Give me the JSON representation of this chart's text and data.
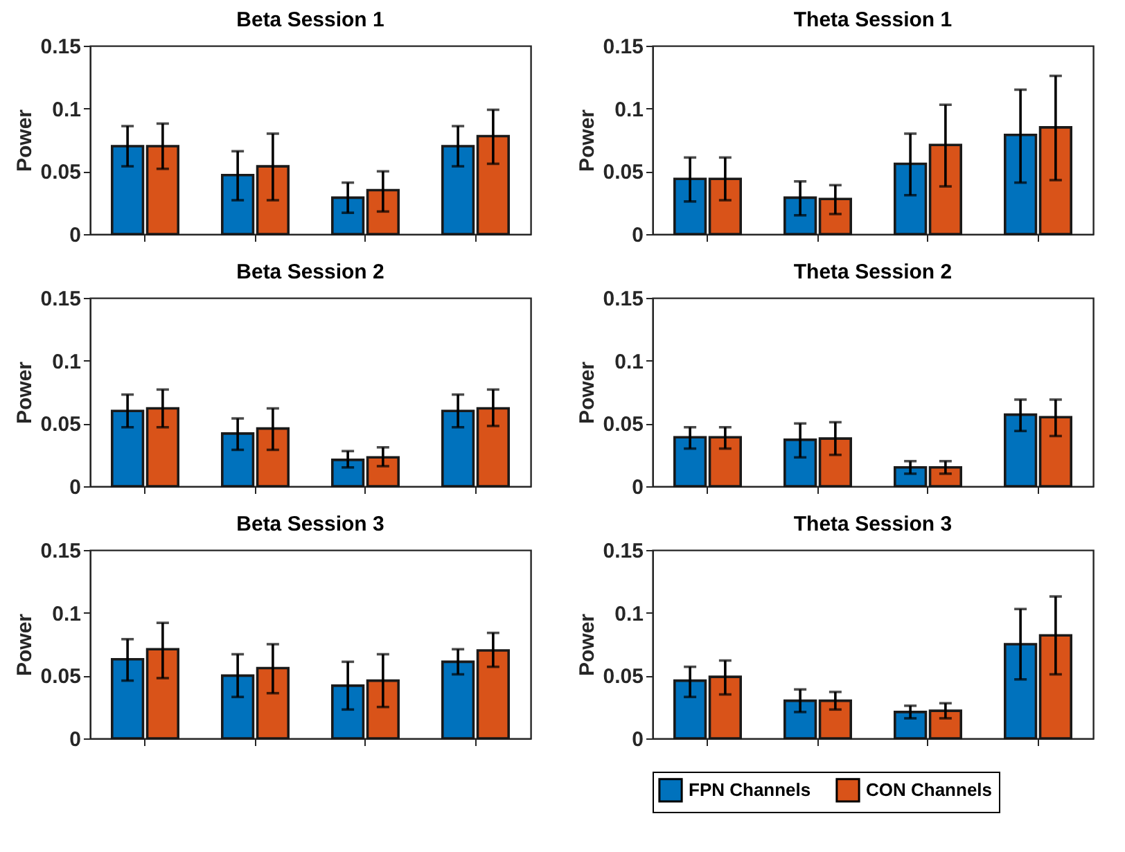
{
  "chart_data": [
    {
      "type": "bar",
      "title": "Beta Session 1",
      "ylabel": "Power",
      "categories": [
        null,
        null,
        null,
        null
      ],
      "ylim": [
        0,
        0.15
      ],
      "yticks": [
        0,
        0.05,
        0.1,
        0.15
      ],
      "tick_labels": "y",
      "grid": false,
      "legend": false,
      "series": [
        {
          "color": "#0072bd",
          "values": [
            0.07,
            0.047,
            0.029,
            0.07
          ],
          "errors": [
            [
              0.054,
              0.086
            ],
            [
              0.027,
              0.066
            ],
            [
              0.017,
              0.041
            ],
            [
              0.054,
              0.086
            ]
          ]
        },
        {
          "color": "#d95319",
          "values": [
            0.07,
            0.054,
            0.035,
            0.078
          ],
          "errors": [
            [
              0.052,
              0.088
            ],
            [
              0.027,
              0.08
            ],
            [
              0.018,
              0.05
            ],
            [
              0.056,
              0.099
            ]
          ]
        }
      ]
    },
    {
      "type": "bar",
      "title": "Theta Session 1",
      "ylabel": "Power",
      "categories": [
        null,
        null,
        null,
        null
      ],
      "ylim": [
        0,
        0.15
      ],
      "yticks": [
        0,
        0.05,
        0.1,
        0.15
      ],
      "tick_labels": "y",
      "grid": false,
      "legend": false,
      "series": [
        {
          "color": "#0072bd",
          "values": [
            0.044,
            0.029,
            0.056,
            0.079
          ],
          "errors": [
            [
              0.026,
              0.061
            ],
            [
              0.015,
              0.042
            ],
            [
              0.031,
              0.08
            ],
            [
              0.041,
              0.115
            ]
          ]
        },
        {
          "color": "#d95319",
          "values": [
            0.044,
            0.028,
            0.071,
            0.085
          ],
          "errors": [
            [
              0.027,
              0.061
            ],
            [
              0.016,
              0.039
            ],
            [
              0.038,
              0.103
            ],
            [
              0.043,
              0.126
            ]
          ]
        }
      ]
    },
    {
      "type": "bar",
      "title": "Beta Session 2",
      "ylabel": "Power",
      "categories": [
        null,
        null,
        null,
        null
      ],
      "ylim": [
        0,
        0.15
      ],
      "yticks": [
        0,
        0.05,
        0.1,
        0.15
      ],
      "tick_labels": "y",
      "grid": false,
      "legend": false,
      "series": [
        {
          "color": "#0072bd",
          "values": [
            0.06,
            0.042,
            0.021,
            0.06
          ],
          "errors": [
            [
              0.047,
              0.073
            ],
            [
              0.029,
              0.054
            ],
            [
              0.015,
              0.028
            ],
            [
              0.047,
              0.073
            ]
          ]
        },
        {
          "color": "#d95319",
          "values": [
            0.062,
            0.046,
            0.023,
            0.062
          ],
          "errors": [
            [
              0.047,
              0.077
            ],
            [
              0.029,
              0.062
            ],
            [
              0.016,
              0.031
            ],
            [
              0.048,
              0.077
            ]
          ]
        }
      ]
    },
    {
      "type": "bar",
      "title": "Theta Session 2",
      "ylabel": "Power",
      "categories": [
        null,
        null,
        null,
        null
      ],
      "ylim": [
        0,
        0.15
      ],
      "yticks": [
        0,
        0.05,
        0.1,
        0.15
      ],
      "tick_labels": "y",
      "grid": false,
      "legend": false,
      "series": [
        {
          "color": "#0072bd",
          "values": [
            0.039,
            0.037,
            0.015,
            0.057
          ],
          "errors": [
            [
              0.03,
              0.047
            ],
            [
              0.023,
              0.05
            ],
            [
              0.01,
              0.02
            ],
            [
              0.044,
              0.069
            ]
          ]
        },
        {
          "color": "#d95319",
          "values": [
            0.039,
            0.038,
            0.015,
            0.055
          ],
          "errors": [
            [
              0.03,
              0.047
            ],
            [
              0.025,
              0.051
            ],
            [
              0.01,
              0.02
            ],
            [
              0.04,
              0.069
            ]
          ]
        }
      ]
    },
    {
      "type": "bar",
      "title": "Beta Session 3",
      "ylabel": "Power",
      "categories": [
        null,
        null,
        null,
        null
      ],
      "ylim": [
        0,
        0.15
      ],
      "yticks": [
        0,
        0.05,
        0.1,
        0.15
      ],
      "tick_labels": "y",
      "grid": false,
      "legend": false,
      "series": [
        {
          "color": "#0072bd",
          "values": [
            0.063,
            0.05,
            0.042,
            0.061
          ],
          "errors": [
            [
              0.046,
              0.079
            ],
            [
              0.033,
              0.067
            ],
            [
              0.023,
              0.061
            ],
            [
              0.051,
              0.071
            ]
          ]
        },
        {
          "color": "#d95319",
          "values": [
            0.071,
            0.056,
            0.046,
            0.07
          ],
          "errors": [
            [
              0.048,
              0.092
            ],
            [
              0.036,
              0.075
            ],
            [
              0.025,
              0.067
            ],
            [
              0.057,
              0.084
            ]
          ]
        }
      ]
    },
    {
      "type": "bar",
      "title": "Theta Session 3",
      "ylabel": "Power",
      "categories": [
        null,
        null,
        null,
        null
      ],
      "ylim": [
        0,
        0.15
      ],
      "yticks": [
        0,
        0.05,
        0.1,
        0.15
      ],
      "tick_labels": "y",
      "grid": false,
      "legend": "bottom",
      "series": [
        {
          "name": "FPN Channels",
          "color": "#0072bd",
          "values": [
            0.046,
            0.03,
            0.021,
            0.075
          ],
          "errors": [
            [
              0.033,
              0.057
            ],
            [
              0.021,
              0.039
            ],
            [
              0.016,
              0.026
            ],
            [
              0.047,
              0.103
            ]
          ]
        },
        {
          "name": "CON Channels",
          "color": "#d95319",
          "values": [
            0.049,
            0.03,
            0.022,
            0.082
          ],
          "errors": [
            [
              0.035,
              0.062
            ],
            [
              0.023,
              0.037
            ],
            [
              0.016,
              0.028
            ],
            [
              0.051,
              0.113
            ]
          ]
        }
      ]
    }
  ]
}
